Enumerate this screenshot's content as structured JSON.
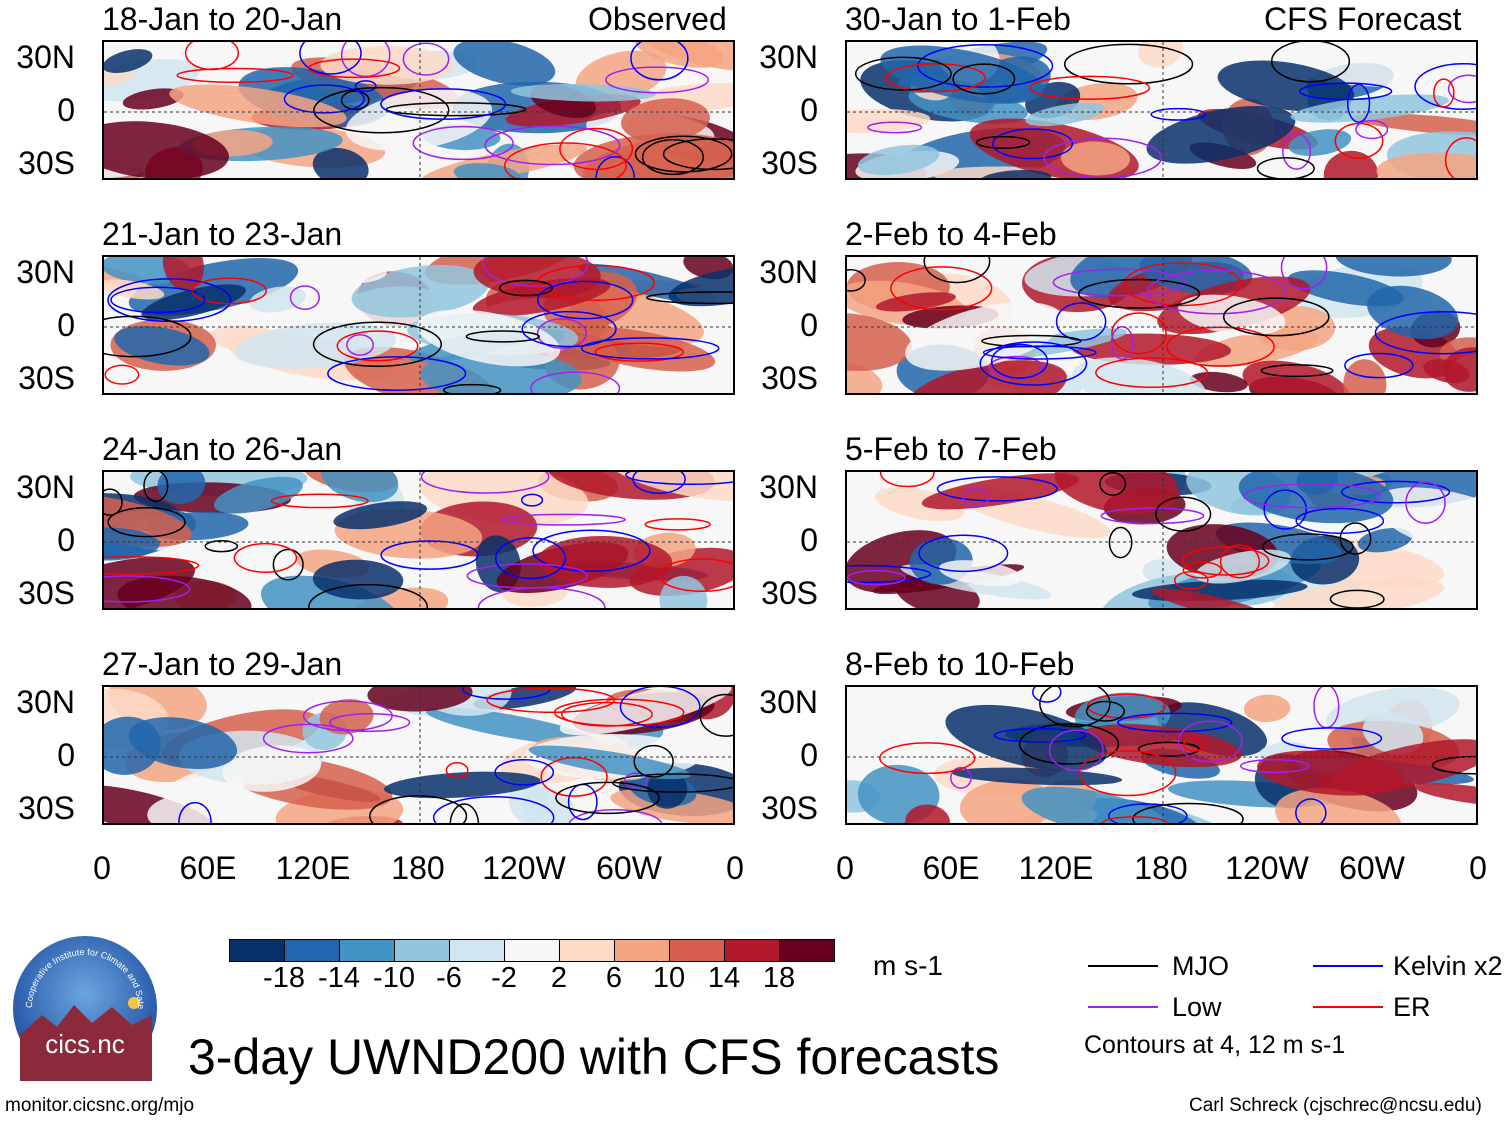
{
  "title": "3-day UWND200 with CFS forecasts",
  "left_header": "Observed",
  "right_header": "CFS Forecast",
  "panels_left": [
    "18-Jan to 20-Jan",
    "21-Jan to 23-Jan",
    "24-Jan to 26-Jan",
    "27-Jan to 29-Jan"
  ],
  "panels_right": [
    "30-Jan to 1-Feb",
    "2-Feb to 4-Feb",
    "5-Feb to 7-Feb",
    "8-Feb to 10-Feb"
  ],
  "lat_labels": [
    "30N",
    "0",
    "30S"
  ],
  "lon_labels": [
    "0",
    "60E",
    "120E",
    "180",
    "120W",
    "60W",
    "0"
  ],
  "colorbar": {
    "colors": [
      "#08306b",
      "#2166ac",
      "#4393c3",
      "#92c5de",
      "#d1e5f0",
      "#f7f7f7",
      "#fddbc7",
      "#f4a582",
      "#d6604d",
      "#b2182b",
      "#67001f"
    ],
    "labels": [
      "-18",
      "-14",
      "-10",
      "-6",
      "-2",
      "2",
      "6",
      "10",
      "14",
      "18"
    ],
    "units": "m s-1"
  },
  "legend": {
    "items": [
      {
        "label": "MJO",
        "color": "#000000"
      },
      {
        "label": "Kelvin x2",
        "color": "#0000ff"
      },
      {
        "label": "Low",
        "color": "#a020f0"
      },
      {
        "label": "ER",
        "color": "#ff0000"
      }
    ],
    "note": "Contours at 4, 12 m s-1"
  },
  "logo": {
    "arc_text": "Cooperative Institute for Climate and Satellites",
    "name": "cics.nc"
  },
  "footer_left": "monitor.cicsnc.org/mjo",
  "footer_right": "Carl Schreck (cjschrec@ncsu.edu)"
}
